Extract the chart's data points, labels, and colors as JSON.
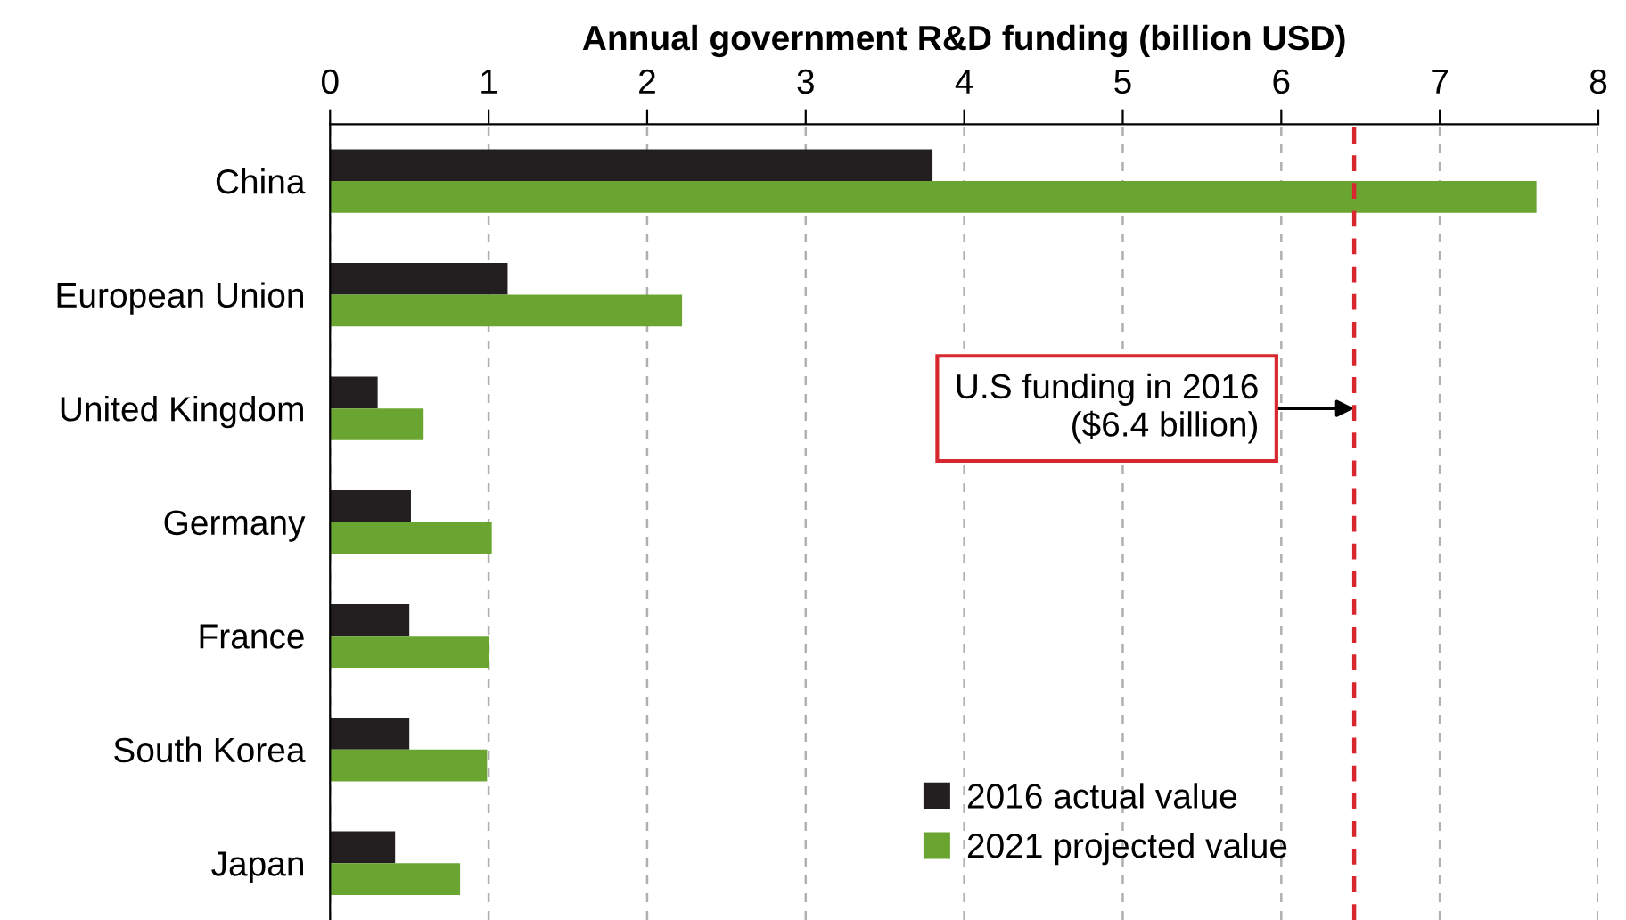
{
  "chart_data": {
    "type": "bar",
    "orientation": "horizontal",
    "title": "Annual government R&D funding (billion USD)",
    "categories": [
      "China",
      "European Union",
      "United Kingdom",
      "Germany",
      "France",
      "South Korea",
      "Japan"
    ],
    "series": [
      {
        "name": "2016 actual value",
        "color": "#231f20",
        "values": [
          3.8,
          1.12,
          0.3,
          0.51,
          0.5,
          0.5,
          0.41
        ]
      },
      {
        "name": "2021 projected value",
        "color": "#6aa532",
        "values": [
          7.61,
          2.22,
          0.59,
          1.02,
          1.0,
          0.99,
          0.82
        ]
      }
    ],
    "xlim": [
      0,
      8
    ],
    "xticks": [
      0,
      1,
      2,
      3,
      4,
      5,
      6,
      7,
      8
    ],
    "grid": "x",
    "legend": "bottom right",
    "ref_lines": [
      {
        "axis": "x",
        "value": 6.46,
        "color": "#d7282f",
        "line_style": "dashed"
      }
    ],
    "annotations": [
      {
        "text": "U.S funding in 2016\n($6.4 billion)",
        "x": 6.46,
        "y": "United Kingdom"
      }
    ]
  }
}
